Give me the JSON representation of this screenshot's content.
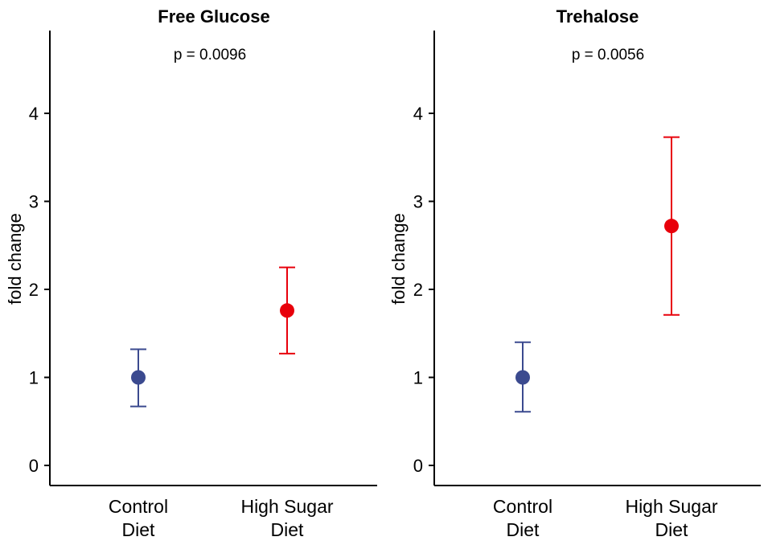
{
  "chart_data": [
    {
      "type": "scatter",
      "title": "Free Glucose",
      "annotation": "p = 0.0096",
      "ylabel": "fold change",
      "xlabel": "",
      "ylim": [
        -0.22,
        4.95
      ],
      "yticks": [
        "0",
        "1",
        "2",
        "3",
        "4"
      ],
      "categories": [
        {
          "line1": "Control",
          "line2": "Diet"
        },
        {
          "line1": "High Sugar",
          "line2": "Diet"
        }
      ],
      "points": [
        {
          "y": 1.0,
          "lower": 0.67,
          "upper": 1.32,
          "color": "#3b4a8f"
        },
        {
          "y": 1.76,
          "lower": 1.27,
          "upper": 2.25,
          "color": "#e8000b"
        }
      ]
    },
    {
      "type": "scatter",
      "title": "Trehalose",
      "annotation": "p = 0.0056",
      "ylabel": "fold change",
      "xlabel": "",
      "ylim": [
        -0.22,
        4.95
      ],
      "yticks": [
        "0",
        "1",
        "2",
        "3",
        "4"
      ],
      "categories": [
        {
          "line1": "Control",
          "line2": "Diet"
        },
        {
          "line1": "High Sugar",
          "line2": "Diet"
        }
      ],
      "points": [
        {
          "y": 1.0,
          "lower": 0.61,
          "upper": 1.4,
          "color": "#3b4a8f"
        },
        {
          "y": 2.72,
          "lower": 1.71,
          "upper": 3.73,
          "color": "#e8000b"
        }
      ]
    }
  ]
}
